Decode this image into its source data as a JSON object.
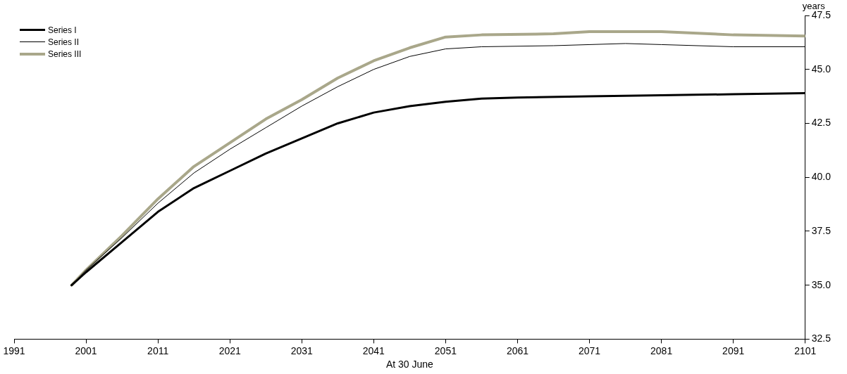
{
  "chart_data": {
    "type": "line",
    "xlabel": "At 30 June",
    "ylabel": "years",
    "xlim": [
      1991,
      2101
    ],
    "xticks": [
      1991,
      2001,
      2011,
      2021,
      2031,
      2041,
      2051,
      2061,
      2071,
      2081,
      2091,
      2101
    ],
    "ylim": [
      32.5,
      47.5
    ],
    "yticks": [
      {
        "value": 32.5,
        "label": "32.5"
      },
      {
        "value": 35,
        "label": "35.0"
      },
      {
        "value": 37.5,
        "label": "37.5"
      },
      {
        "value": 40,
        "label": "40.0"
      },
      {
        "value": 42.5,
        "label": "42.5"
      },
      {
        "value": 45,
        "label": "45.0"
      },
      {
        "value": 47.5,
        "label": "47.5"
      }
    ],
    "grid": false,
    "legend": "top left",
    "marker": "none",
    "series": [
      {
        "name": "Series I",
        "color": "#000000",
        "x": [
          1999,
          2001,
          2006,
          2011,
          2016,
          2021,
          2026,
          2031,
          2036,
          2041,
          2046,
          2051,
          2056,
          2061,
          2071,
          2081,
          2091,
          2101
        ],
        "values": [
          35.0,
          35.6,
          37.0,
          38.4,
          39.5,
          40.3,
          41.1,
          41.8,
          42.5,
          43.0,
          43.3,
          43.5,
          43.65,
          43.7,
          43.75,
          43.8,
          43.85,
          43.9
        ]
      },
      {
        "name": "Series II",
        "color": "#000000",
        "x": [
          1999,
          2001,
          2006,
          2011,
          2016,
          2021,
          2026,
          2031,
          2036,
          2041,
          2046,
          2051,
          2056,
          2066,
          2076,
          2081,
          2091,
          2101
        ],
        "values": [
          35.0,
          35.7,
          37.2,
          38.8,
          40.2,
          41.3,
          42.3,
          43.3,
          44.2,
          45.0,
          45.6,
          45.95,
          46.05,
          46.1,
          46.2,
          46.15,
          46.05,
          46.05
        ]
      },
      {
        "name": "Series III",
        "color": "#a9a78a",
        "x": [
          1999,
          2001,
          2006,
          2011,
          2016,
          2021,
          2026,
          2031,
          2036,
          2041,
          2046,
          2051,
          2056,
          2066,
          2071,
          2081,
          2091,
          2101
        ],
        "values": [
          35.0,
          35.7,
          37.3,
          39.0,
          40.5,
          41.6,
          42.7,
          43.6,
          44.6,
          45.4,
          46.0,
          46.5,
          46.6,
          46.65,
          46.75,
          46.75,
          46.6,
          46.55
        ]
      }
    ]
  }
}
